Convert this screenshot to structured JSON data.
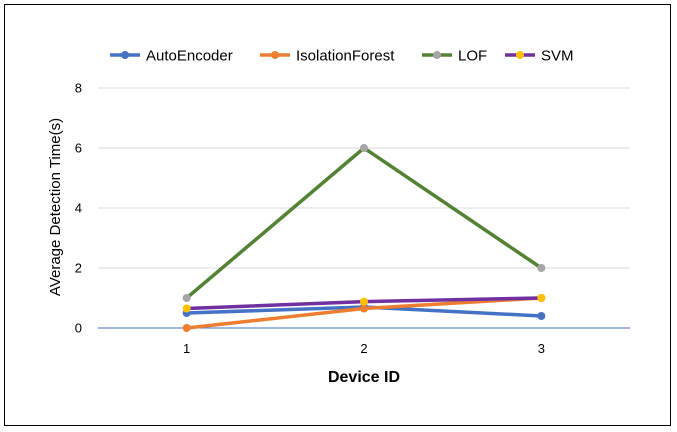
{
  "chart_data": {
    "type": "line",
    "xlabel": "Device ID",
    "ylabel": "AVerage Detection Time(s)",
    "categories": [
      "1",
      "2",
      "3"
    ],
    "ylim": [
      0,
      8
    ],
    "yticks": [
      "0",
      "2",
      "4",
      "6",
      "8"
    ],
    "grid": true,
    "legend_position": "top",
    "series": [
      {
        "name": "AutoEncoder",
        "values": [
          0.5,
          0.7,
          0.4
        ],
        "color": "#4472C4",
        "marker_color": "#4472C4"
      },
      {
        "name": "IsolationForest",
        "values": [
          0.0,
          0.65,
          1.0
        ],
        "color": "#ED7D31",
        "marker_color": "#ED7D31"
      },
      {
        "name": "LOF",
        "values": [
          1.0,
          6.0,
          2.0
        ],
        "color": "#548235",
        "marker_color": "#A5A5A5"
      },
      {
        "name": "SVM",
        "values": [
          0.65,
          0.88,
          1.0
        ],
        "color": "#7030A0",
        "marker_color": "#FFC000"
      }
    ]
  }
}
